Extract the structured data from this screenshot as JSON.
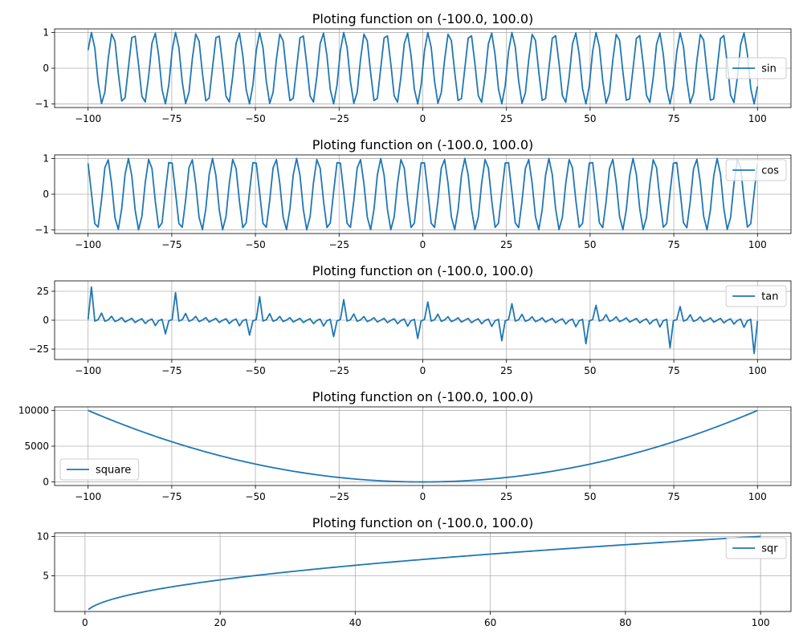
{
  "chart_data": [
    {
      "type": "line",
      "title": "Ploting function on (-100.0, 100.0)",
      "function": "sin",
      "xlim": [
        -110,
        110
      ],
      "ylim": [
        -1.1,
        1.1
      ],
      "xticks": [
        -100,
        -75,
        -50,
        -25,
        0,
        25,
        50,
        75,
        100
      ],
      "yticks": [
        -1,
        0,
        1
      ],
      "grid": true,
      "legend_position": "right",
      "series": [
        {
          "name": "sin",
          "color": "#1f77b4",
          "x_range": [
            -100,
            100
          ],
          "samples": 200
        }
      ]
    },
    {
      "type": "line",
      "title": "Ploting function on (-100.0, 100.0)",
      "function": "cos",
      "xlim": [
        -110,
        110
      ],
      "ylim": [
        -1.1,
        1.1
      ],
      "xticks": [
        -100,
        -75,
        -50,
        -25,
        0,
        25,
        50,
        75,
        100
      ],
      "yticks": [
        -1,
        0,
        1
      ],
      "grid": true,
      "legend_position": "top-right",
      "series": [
        {
          "name": "cos",
          "color": "#1f77b4",
          "x_range": [
            -100,
            100
          ],
          "samples": 200
        }
      ]
    },
    {
      "type": "line",
      "title": "Ploting function on (-100.0, 100.0)",
      "function": "tan",
      "xlim": [
        -110,
        110
      ],
      "ylim": [
        -34,
        34
      ],
      "xticks": [
        -100,
        -75,
        -50,
        -25,
        0,
        25,
        50,
        75,
        100
      ],
      "yticks": [
        -25,
        0,
        25
      ],
      "grid": true,
      "legend_position": "top-right",
      "series": [
        {
          "name": "tan",
          "color": "#1f77b4",
          "x_range": [
            -100,
            100
          ],
          "samples": 200
        }
      ]
    },
    {
      "type": "line",
      "title": "Ploting function on (-100.0, 100.0)",
      "function": "square",
      "xlim": [
        -110,
        110
      ],
      "ylim": [
        -500,
        10500
      ],
      "xticks": [
        -100,
        -75,
        -50,
        -25,
        0,
        25,
        50,
        75,
        100
      ],
      "yticks": [
        0,
        5000,
        10000
      ],
      "grid": true,
      "legend_position": "lower-left",
      "series": [
        {
          "name": "square",
          "color": "#1f77b4",
          "x_range": [
            -100,
            100
          ],
          "samples": 200
        }
      ]
    },
    {
      "type": "line",
      "title": "Ploting function on (-100.0, 100.0)",
      "function": "sqrt",
      "xlim": [
        -4.5,
        104.5
      ],
      "ylim": [
        0.45,
        10.45
      ],
      "xticks": [
        0,
        20,
        40,
        60,
        80,
        100
      ],
      "yticks": [
        5,
        10
      ],
      "grid": true,
      "legend_position": "top-right",
      "series": [
        {
          "name": "sqr",
          "color": "#1f77b4",
          "x_range": [
            0.5,
            100
          ],
          "samples": 200
        }
      ]
    }
  ]
}
